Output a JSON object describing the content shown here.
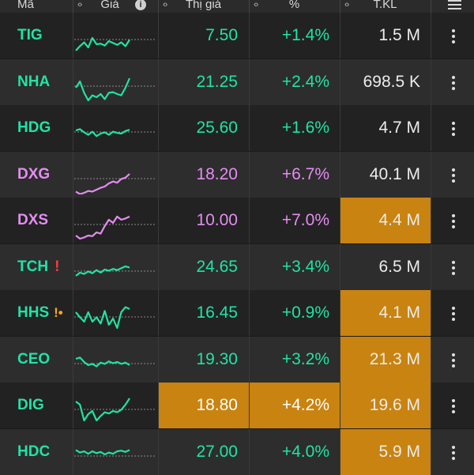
{
  "header": {
    "col_symbol": "Mã",
    "col_chart": "Giá",
    "col_price": "Thị giá",
    "col_pct": "%",
    "col_volume": "T.KL"
  },
  "colors": {
    "up": "#20e3a4",
    "ceiling": "#e58cf2",
    "highlight": "#c98310"
  },
  "rows": [
    {
      "symbol": "TIG",
      "price": "7.50",
      "pct": "+1.4%",
      "volume": "1.5 M",
      "color": "up",
      "spark": [
        55,
        48,
        42,
        50,
        35,
        45,
        44,
        47,
        40,
        43,
        46,
        42,
        48,
        38
      ]
    },
    {
      "symbol": "NHA",
      "price": "21.25",
      "pct": "+2.4%",
      "volume": "698.5 K",
      "color": "up",
      "spark": [
        40,
        30,
        48,
        60,
        52,
        55,
        50,
        58,
        48,
        47,
        50,
        52,
        40,
        25
      ]
    },
    {
      "symbol": "HDG",
      "price": "25.60",
      "pct": "+1.6%",
      "volume": "4.7 M",
      "color": "up",
      "spark": [
        35,
        33,
        38,
        42,
        37,
        44,
        40,
        38,
        42,
        37,
        39,
        40,
        36,
        34
      ]
    },
    {
      "symbol": "DXG",
      "price": "18.20",
      "pct": "+6.7%",
      "volume": "40.1 M",
      "color": "ceiling",
      "spark": [
        58,
        62,
        60,
        57,
        58,
        55,
        52,
        50,
        45,
        42,
        44,
        38,
        36,
        30
      ]
    },
    {
      "symbol": "DXS",
      "price": "10.00",
      "pct": "+7.0%",
      "volume": "4.4 M",
      "color": "ceiling",
      "volume_hl": true,
      "spark": [
        55,
        60,
        58,
        55,
        56,
        50,
        52,
        40,
        30,
        35,
        25,
        30,
        28,
        25
      ]
    },
    {
      "symbol": "TCH",
      "price": "24.65",
      "pct": "+3.4%",
      "volume": "6.5 M",
      "color": "up",
      "alert": "!",
      "alert_type": "red",
      "spark": [
        45,
        40,
        42,
        38,
        41,
        36,
        40,
        35,
        37,
        34,
        36,
        33,
        30,
        32
      ]
    },
    {
      "symbol": "HHS",
      "price": "16.45",
      "pct": "+0.9%",
      "volume": "4.1 M",
      "color": "up",
      "alert": "!•",
      "alert_type": "orange",
      "volume_hl": true,
      "spark": [
        30,
        38,
        45,
        30,
        45,
        38,
        48,
        28,
        50,
        40,
        55,
        30,
        22,
        25
      ]
    },
    {
      "symbol": "CEO",
      "price": "19.30",
      "pct": "+3.2%",
      "volume": "21.3 M",
      "color": "up",
      "volume_hl": true,
      "spark": [
        30,
        28,
        35,
        40,
        38,
        42,
        36,
        38,
        34,
        37,
        35,
        38,
        36,
        40
      ]
    },
    {
      "symbol": "DIG",
      "price": "18.80",
      "pct": "+4.2%",
      "volume": "19.6 M",
      "color": "up",
      "price_hl": true,
      "pct_hl": true,
      "volume_hl": true,
      "spark": [
        25,
        30,
        55,
        45,
        40,
        55,
        48,
        42,
        44,
        40,
        42,
        38,
        30,
        20
      ]
    },
    {
      "symbol": "HDC",
      "price": "27.00",
      "pct": "+4.0%",
      "volume": "5.9 M",
      "color": "up",
      "volume_hl": true,
      "spark": [
        28,
        32,
        30,
        34,
        30,
        33,
        31,
        35,
        32,
        34,
        30,
        29,
        31,
        28
      ]
    }
  ]
}
